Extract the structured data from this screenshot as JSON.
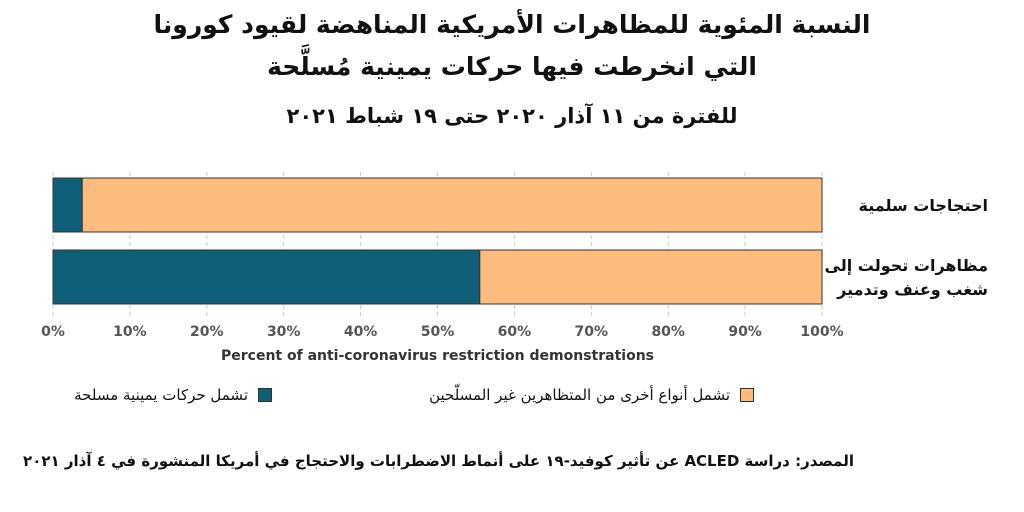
{
  "title_line1": "النسبة المئوية للمظاهرات الأمريكية المناهضة لقيود كورونا",
  "title_line2": "التي انخرطت فيها حركات يمينية مُسلَّحة",
  "subtitle": "للفترة من ١١ آذار ٢٠٢٠ حتى ١٩ شباط ٢٠٢١",
  "source": "المصدر: دراسة ACLED عن تأثير كوفيد-١٩ على أنماط الاضطرابات والاحتجاج في أمريكا المنشورة في ٤ آذار ٢٠٢١",
  "chart_data": {
    "type": "bar",
    "orientation": "horizontal",
    "stacked": true,
    "categories": [
      [
        "احتجاجات سلمية"
      ],
      [
        "مظاهرات تحولت إلى",
        "شغب وعنف وتدمير"
      ]
    ],
    "series": [
      {
        "name": "تشمل حركات يمينية مسلحة",
        "values": [
          3.8,
          55.5
        ],
        "color": "#0f5f78"
      },
      {
        "name": "تشمل أنواع أخرى من المتظاهرين غير المسلّحين",
        "values": [
          96.2,
          44.5
        ],
        "color": "#fdbb7e"
      }
    ],
    "xlabel": "Percent of anti-coronavirus restriction demonstrations",
    "xlim": [
      0,
      100
    ],
    "xticks": [
      "0%",
      "10%",
      "20%",
      "30%",
      "40%",
      "50%",
      "60%",
      "70%",
      "80%",
      "90%",
      "100%"
    ],
    "grid": "vertical-dashed",
    "legend_placement": "bottom"
  }
}
